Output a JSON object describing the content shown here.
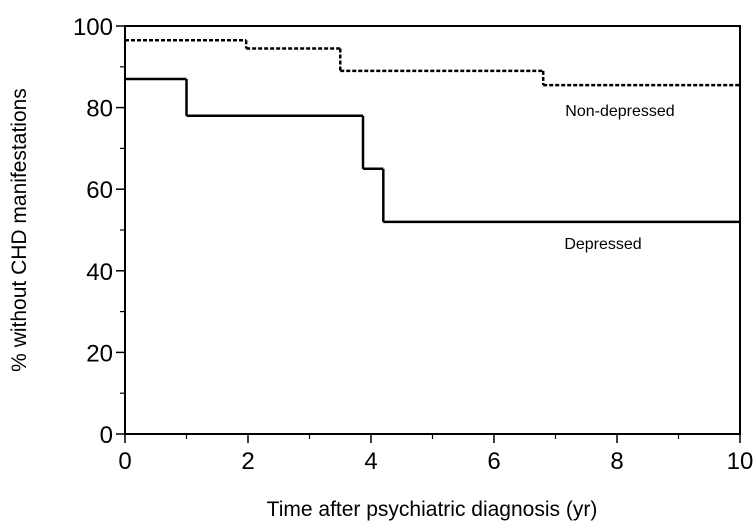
{
  "chart_data": {
    "type": "step",
    "xlabel": "Time after psychiatric diagnosis (yr)",
    "ylabel": "% without CHD manifestations",
    "xlim": [
      0,
      10
    ],
    "xticks": [
      0,
      2,
      4,
      6,
      8,
      10
    ],
    "xminorticks": [
      1,
      3,
      5,
      7,
      9
    ],
    "ylim": [
      0,
      100
    ],
    "yticks": [
      0,
      20,
      40,
      60,
      80,
      100
    ],
    "yminorticks": [
      10,
      30,
      50,
      70,
      90
    ],
    "series": [
      {
        "name": "Non-depressed",
        "color": "#000000",
        "style": "dashed",
        "x": [
          0,
          1.97,
          3.5,
          6.8
        ],
        "values": [
          96.5,
          94.5,
          89,
          85.5
        ]
      },
      {
        "name": "Depressed",
        "color": "#000000",
        "style": "solid",
        "x": [
          0,
          1,
          3.87,
          4.2
        ],
        "values": [
          87,
          78,
          65,
          52
        ]
      }
    ]
  }
}
